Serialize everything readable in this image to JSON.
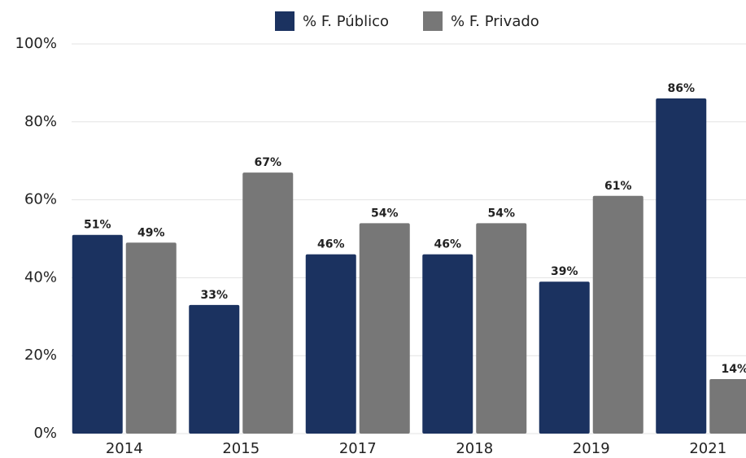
{
  "chart_data": {
    "type": "bar",
    "categories": [
      "2014",
      "2015",
      "2017",
      "2018",
      "2019",
      "2021"
    ],
    "series": [
      {
        "name": "% F. Público",
        "color": "#1b3260",
        "values": [
          51,
          33,
          46,
          46,
          39,
          86
        ],
        "value_labels": [
          "51%",
          "33%",
          "46%",
          "46%",
          "39%",
          "86%"
        ]
      },
      {
        "name": "% F. Privado",
        "color": "#777777",
        "values": [
          49,
          67,
          54,
          54,
          61,
          14
        ],
        "value_labels": [
          "49%",
          "67%",
          "54%",
          "54%",
          "61%",
          "14%"
        ]
      }
    ],
    "ylim": [
      0,
      100
    ],
    "yticks": [
      {
        "value": 0,
        "label": "0%"
      },
      {
        "value": 20,
        "label": "20%"
      },
      {
        "value": 40,
        "label": "40%"
      },
      {
        "value": 60,
        "label": "60%"
      },
      {
        "value": 80,
        "label": "80%"
      },
      {
        "value": 100,
        "label": "100%"
      }
    ],
    "grid": true,
    "legend": "top"
  }
}
